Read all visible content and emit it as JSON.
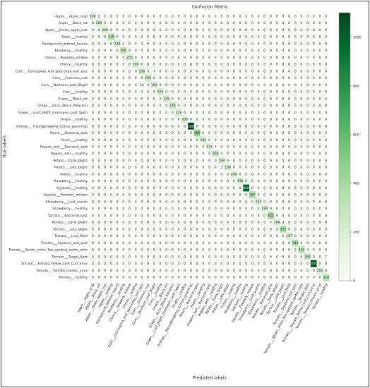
{
  "chart_data": {
    "type": "heatmap",
    "title": "Confusion Matrix",
    "xlabel": "Predicted labels",
    "ylabel": "True labels",
    "categories": [
      "Apple___Apple_scab",
      "Apple___Black_rot",
      "Apple___Cedar_apple_rust",
      "Apple___healthy",
      "Background_without_leaves",
      "Blueberry___healthy",
      "Cherry___Powdery_mildew",
      "Cherry___healthy",
      "Corn___Cercospora_leaf_spot Gray_leaf_spot",
      "Corn___Common_rust",
      "Corn___Northern_Leaf_Blight",
      "Corn___healthy",
      "Grape___Black_rot",
      "Grape___Esca_(Black_Measles)",
      "Grape___Leaf_blight_(Isariopsis_Leaf_Spot)",
      "Grape___healthy",
      "Orange___Haunglongbing_(Citrus_greening)",
      "Peach___Bacterial_spot",
      "Peach___healthy",
      "Pepper,_bell___Bacterial_spot",
      "Pepper,_bell___healthy",
      "Potato___Early_blight",
      "Potato___Late_blight",
      "Potato___healthy",
      "Raspberry___healthy",
      "Soybean___healthy",
      "Squash___Powdery_mildew",
      "Strawberry___Leaf_scorch",
      "Strawberry___healthy",
      "Tomato___Bacterial_spot",
      "Tomato___Early_blight",
      "Tomato___Late_blight",
      "Tomato___Leaf_Mold",
      "Tomato___Septoria_leaf_spot",
      "Tomato___Spider_mites Two-spotted_spider_mite",
      "Tomato___Target_Spot",
      "Tomato___Tomato_Yellow_Leaf_Curl_Virus",
      "Tomato___Tomato_mosaic_virus",
      "Tomato___healthy"
    ],
    "values": [
      [
        190,
        2,
        2,
        0,
        2,
        0,
        0,
        0,
        0,
        0,
        0,
        0,
        0,
        0,
        0,
        0,
        0,
        0,
        0,
        0,
        0,
        0,
        0,
        0,
        0,
        3,
        0,
        0,
        0,
        0,
        0,
        0,
        0,
        0,
        0,
        0,
        0,
        0,
        0
      ],
      [
        0,
        200,
        0,
        0,
        0,
        0,
        0,
        0,
        0,
        0,
        0,
        0,
        0,
        0,
        0,
        0,
        0,
        0,
        0,
        0,
        0,
        0,
        0,
        0,
        0,
        0,
        0,
        0,
        0,
        0,
        0,
        0,
        0,
        0,
        0,
        0,
        0,
        0,
        0
      ],
      [
        0,
        0,
        200,
        0,
        0,
        0,
        0,
        0,
        0,
        0,
        0,
        0,
        0,
        0,
        0,
        0,
        0,
        0,
        0,
        0,
        0,
        0,
        0,
        0,
        0,
        0,
        0,
        0,
        0,
        0,
        0,
        0,
        0,
        0,
        0,
        0,
        0,
        0,
        0
      ],
      [
        0,
        0,
        0,
        328,
        0,
        0,
        0,
        0,
        0,
        0,
        0,
        0,
        0,
        0,
        0,
        0,
        0,
        0,
        0,
        0,
        0,
        0,
        0,
        0,
        0,
        0,
        0,
        0,
        0,
        0,
        0,
        0,
        0,
        0,
        0,
        0,
        0,
        0,
        0
      ],
      [
        0,
        0,
        0,
        0,
        228,
        0,
        0,
        0,
        0,
        0,
        0,
        0,
        0,
        0,
        0,
        0,
        0,
        0,
        0,
        0,
        0,
        0,
        0,
        0,
        0,
        0,
        0,
        0,
        0,
        0,
        0,
        0,
        0,
        0,
        0,
        0,
        0,
        0,
        0
      ],
      [
        0,
        0,
        0,
        0,
        0,
        300,
        0,
        0,
        0,
        0,
        0,
        0,
        0,
        0,
        0,
        0,
        0,
        0,
        0,
        0,
        0,
        0,
        0,
        0,
        0,
        0,
        0,
        0,
        0,
        0,
        0,
        0,
        0,
        0,
        0,
        0,
        0,
        0,
        0
      ],
      [
        0,
        0,
        0,
        0,
        0,
        0,
        205,
        0,
        0,
        0,
        0,
        0,
        0,
        0,
        0,
        0,
        0,
        0,
        0,
        0,
        0,
        0,
        0,
        0,
        0,
        0,
        0,
        0,
        0,
        0,
        0,
        0,
        0,
        0,
        0,
        0,
        0,
        0,
        0
      ],
      [
        0,
        0,
        0,
        0,
        0,
        0,
        0,
        200,
        0,
        0,
        0,
        0,
        0,
        0,
        0,
        0,
        0,
        0,
        0,
        0,
        0,
        0,
        0,
        0,
        0,
        0,
        0,
        0,
        0,
        0,
        0,
        0,
        0,
        0,
        0,
        0,
        0,
        0,
        0
      ],
      [
        0,
        0,
        0,
        0,
        0,
        0,
        0,
        0,
        196,
        0,
        7,
        0,
        0,
        0,
        0,
        0,
        0,
        0,
        0,
        0,
        0,
        0,
        0,
        0,
        0,
        0,
        0,
        0,
        0,
        0,
        0,
        0,
        0,
        0,
        0,
        0,
        0,
        0,
        0
      ],
      [
        0,
        0,
        0,
        0,
        0,
        0,
        0,
        0,
        0,
        239,
        0,
        0,
        0,
        0,
        0,
        0,
        0,
        0,
        0,
        0,
        0,
        0,
        0,
        0,
        0,
        0,
        0,
        0,
        0,
        0,
        0,
        0,
        0,
        0,
        0,
        0,
        0,
        0,
        0
      ],
      [
        0,
        0,
        0,
        0,
        0,
        0,
        0,
        0,
        16,
        0,
        192,
        0,
        0,
        0,
        0,
        0,
        0,
        0,
        0,
        0,
        0,
        0,
        0,
        0,
        0,
        0,
        0,
        0,
        0,
        0,
        0,
        0,
        0,
        0,
        0,
        0,
        0,
        0,
        0
      ],
      [
        0,
        0,
        0,
        0,
        0,
        0,
        0,
        0,
        0,
        0,
        0,
        233,
        0,
        0,
        0,
        0,
        0,
        0,
        0,
        0,
        0,
        0,
        0,
        0,
        0,
        0,
        0,
        0,
        0,
        0,
        0,
        0,
        0,
        0,
        0,
        0,
        0,
        0,
        0
      ],
      [
        0,
        0,
        0,
        0,
        0,
        0,
        0,
        0,
        0,
        0,
        0,
        0,
        235,
        0,
        0,
        0,
        0,
        0,
        0,
        0,
        0,
        0,
        0,
        0,
        0,
        0,
        0,
        0,
        0,
        0,
        0,
        0,
        0,
        0,
        0,
        0,
        0,
        0,
        0
      ],
      [
        0,
        0,
        0,
        0,
        0,
        0,
        0,
        0,
        0,
        0,
        0,
        0,
        0,
        278,
        0,
        0,
        0,
        0,
        0,
        0,
        0,
        0,
        0,
        0,
        0,
        0,
        0,
        0,
        0,
        0,
        0,
        0,
        0,
        0,
        0,
        0,
        0,
        0,
        0
      ],
      [
        0,
        0,
        0,
        0,
        0,
        0,
        0,
        0,
        0,
        0,
        0,
        0,
        0,
        0,
        219,
        0,
        0,
        0,
        0,
        0,
        0,
        0,
        0,
        0,
        0,
        0,
        0,
        0,
        0,
        0,
        0,
        0,
        0,
        0,
        0,
        0,
        0,
        0,
        0
      ],
      [
        0,
        0,
        0,
        0,
        0,
        0,
        0,
        0,
        0,
        0,
        0,
        0,
        0,
        0,
        0,
        200,
        0,
        0,
        0,
        0,
        0,
        0,
        0,
        0,
        0,
        0,
        0,
        0,
        0,
        0,
        0,
        0,
        0,
        0,
        0,
        0,
        0,
        0,
        0
      ],
      [
        0,
        0,
        0,
        0,
        0,
        0,
        0,
        0,
        0,
        0,
        0,
        0,
        0,
        0,
        0,
        0,
        1101,
        0,
        0,
        0,
        0,
        0,
        0,
        0,
        0,
        0,
        0,
        0,
        0,
        0,
        0,
        0,
        0,
        0,
        0,
        0,
        0,
        0,
        0
      ],
      [
        0,
        0,
        0,
        0,
        0,
        0,
        0,
        0,
        0,
        0,
        0,
        0,
        0,
        0,
        0,
        0,
        0,
        460,
        0,
        0,
        0,
        0,
        0,
        0,
        0,
        0,
        0,
        0,
        0,
        0,
        0,
        0,
        0,
        0,
        0,
        0,
        0,
        0,
        0
      ],
      [
        0,
        0,
        0,
        0,
        0,
        0,
        0,
        0,
        0,
        0,
        0,
        0,
        0,
        0,
        0,
        0,
        0,
        0,
        200,
        0,
        0,
        0,
        0,
        0,
        0,
        0,
        0,
        0,
        0,
        0,
        0,
        0,
        0,
        0,
        0,
        0,
        0,
        0,
        0
      ],
      [
        0,
        0,
        0,
        0,
        0,
        0,
        0,
        0,
        0,
        0,
        0,
        0,
        0,
        0,
        0,
        0,
        0,
        0,
        0,
        175,
        3,
        0,
        0,
        0,
        0,
        0,
        0,
        0,
        0,
        0,
        0,
        0,
        0,
        0,
        0,
        0,
        0,
        0,
        0
      ],
      [
        0,
        0,
        0,
        0,
        0,
        0,
        0,
        0,
        0,
        0,
        0,
        0,
        0,
        0,
        0,
        0,
        0,
        0,
        0,
        0,
        266,
        0,
        0,
        0,
        0,
        0,
        0,
        0,
        0,
        0,
        0,
        0,
        0,
        0,
        0,
        0,
        0,
        0,
        0
      ],
      [
        0,
        0,
        0,
        0,
        0,
        0,
        0,
        0,
        0,
        0,
        0,
        0,
        0,
        0,
        0,
        0,
        0,
        0,
        0,
        0,
        0,
        199,
        0,
        0,
        0,
        0,
        0,
        0,
        0,
        0,
        0,
        0,
        0,
        0,
        0,
        0,
        0,
        0,
        0
      ],
      [
        0,
        0,
        0,
        0,
        0,
        0,
        0,
        0,
        0,
        0,
        0,
        0,
        0,
        0,
        0,
        0,
        0,
        0,
        0,
        0,
        0,
        3,
        196,
        0,
        0,
        0,
        0,
        0,
        0,
        0,
        0,
        0,
        0,
        0,
        0,
        0,
        0,
        0,
        0
      ],
      [
        0,
        0,
        0,
        0,
        0,
        0,
        0,
        0,
        0,
        0,
        0,
        0,
        0,
        0,
        0,
        0,
        0,
        0,
        0,
        0,
        0,
        0,
        0,
        200,
        0,
        0,
        0,
        0,
        0,
        0,
        0,
        0,
        0,
        0,
        0,
        0,
        0,
        0,
        0
      ],
      [
        0,
        0,
        0,
        0,
        0,
        0,
        0,
        0,
        0,
        0,
        0,
        0,
        0,
        0,
        0,
        0,
        0,
        0,
        0,
        0,
        0,
        0,
        0,
        0,
        198,
        0,
        0,
        0,
        0,
        0,
        0,
        0,
        0,
        0,
        0,
        0,
        0,
        0,
        0
      ],
      [
        0,
        0,
        0,
        0,
        0,
        0,
        0,
        0,
        0,
        0,
        0,
        0,
        0,
        0,
        0,
        0,
        0,
        0,
        0,
        0,
        0,
        0,
        0,
        0,
        0,
        1018,
        0,
        0,
        0,
        0,
        0,
        0,
        0,
        0,
        0,
        0,
        0,
        0,
        0
      ],
      [
        0,
        0,
        0,
        0,
        0,
        0,
        0,
        0,
        0,
        0,
        0,
        0,
        0,
        0,
        0,
        0,
        0,
        0,
        0,
        0,
        0,
        0,
        0,
        0,
        0,
        0,
        367,
        0,
        0,
        0,
        0,
        0,
        0,
        0,
        0,
        0,
        0,
        0,
        0
      ],
      [
        0,
        0,
        0,
        0,
        0,
        0,
        0,
        0,
        0,
        0,
        0,
        0,
        0,
        0,
        0,
        0,
        0,
        0,
        0,
        0,
        0,
        0,
        0,
        0,
        0,
        0,
        0,
        223,
        0,
        0,
        0,
        0,
        0,
        0,
        0,
        0,
        0,
        0,
        0
      ],
      [
        0,
        0,
        0,
        0,
        0,
        0,
        0,
        0,
        0,
        0,
        0,
        0,
        0,
        0,
        0,
        0,
        0,
        0,
        0,
        0,
        0,
        0,
        0,
        0,
        0,
        0,
        0,
        0,
        199,
        0,
        0,
        0,
        0,
        0,
        0,
        0,
        0,
        0,
        0
      ],
      [
        0,
        0,
        0,
        0,
        0,
        0,
        0,
        0,
        0,
        0,
        0,
        0,
        0,
        0,
        0,
        0,
        0,
        0,
        0,
        0,
        0,
        0,
        0,
        0,
        0,
        0,
        0,
        0,
        0,
        425,
        0,
        0,
        0,
        0,
        0,
        0,
        0,
        0,
        0
      ],
      [
        0,
        0,
        0,
        0,
        0,
        0,
        0,
        0,
        0,
        0,
        0,
        0,
        0,
        0,
        0,
        0,
        0,
        0,
        0,
        0,
        0,
        0,
        0,
        0,
        0,
        0,
        0,
        0,
        0,
        4,
        196,
        3,
        0,
        0,
        0,
        0,
        0,
        0,
        0
      ],
      [
        0,
        0,
        0,
        0,
        0,
        0,
        0,
        0,
        0,
        0,
        0,
        0,
        0,
        0,
        0,
        0,
        0,
        0,
        0,
        0,
        0,
        0,
        0,
        0,
        0,
        0,
        0,
        0,
        0,
        0,
        2,
        375,
        0,
        0,
        0,
        0,
        0,
        0,
        0
      ],
      [
        0,
        0,
        0,
        0,
        0,
        0,
        0,
        0,
        0,
        0,
        0,
        0,
        0,
        0,
        0,
        0,
        0,
        0,
        0,
        0,
        0,
        0,
        0,
        0,
        0,
        0,
        0,
        0,
        0,
        0,
        0,
        0,
        197,
        0,
        0,
        0,
        0,
        0,
        0
      ],
      [
        0,
        0,
        0,
        0,
        0,
        0,
        0,
        0,
        0,
        0,
        0,
        0,
        0,
        0,
        0,
        0,
        0,
        0,
        0,
        0,
        0,
        0,
        0,
        0,
        0,
        0,
        0,
        0,
        0,
        0,
        0,
        0,
        0,
        349,
        0,
        0,
        0,
        0,
        0
      ],
      [
        0,
        0,
        0,
        0,
        0,
        0,
        0,
        0,
        0,
        0,
        0,
        0,
        0,
        0,
        0,
        0,
        0,
        0,
        0,
        0,
        0,
        0,
        0,
        0,
        0,
        0,
        0,
        0,
        0,
        0,
        0,
        0,
        0,
        0,
        332,
        3,
        0,
        0,
        0
      ],
      [
        0,
        0,
        0,
        0,
        0,
        0,
        0,
        0,
        0,
        0,
        0,
        0,
        0,
        0,
        0,
        0,
        0,
        0,
        0,
        0,
        0,
        0,
        0,
        0,
        0,
        0,
        0,
        0,
        0,
        4,
        4,
        0,
        0,
        0,
        0,
        282,
        0,
        0,
        7
      ],
      [
        0,
        0,
        0,
        0,
        0,
        0,
        0,
        0,
        0,
        0,
        0,
        0,
        0,
        0,
        0,
        0,
        0,
        0,
        0,
        0,
        0,
        0,
        0,
        0,
        0,
        0,
        0,
        0,
        0,
        0,
        0,
        0,
        0,
        0,
        0,
        0,
        1070,
        0,
        0
      ],
      [
        0,
        0,
        0,
        0,
        0,
        0,
        0,
        0,
        0,
        0,
        0,
        0,
        0,
        0,
        0,
        0,
        0,
        0,
        0,
        0,
        0,
        0,
        0,
        0,
        0,
        0,
        0,
        0,
        0,
        0,
        0,
        0,
        0,
        0,
        0,
        0,
        0,
        200,
        0
      ],
      [
        0,
        0,
        0,
        0,
        0,
        0,
        0,
        0,
        0,
        0,
        0,
        0,
        0,
        0,
        0,
        0,
        0,
        0,
        0,
        0,
        0,
        0,
        0,
        0,
        0,
        0,
        0,
        0,
        0,
        0,
        0,
        0,
        0,
        0,
        0,
        0,
        0,
        0,
        318
      ]
    ],
    "colorbar_lim": [
      0,
      1101
    ],
    "colorbar_ticks": [
      0,
      200,
      400,
      600,
      800,
      1000
    ],
    "colormap": [
      "#f7fcf5",
      "#e5f5e0",
      "#c7e9c0",
      "#a1d99b",
      "#74c476",
      "#41ab5d",
      "#238b45",
      "#006d2c",
      "#00441b"
    ]
  }
}
